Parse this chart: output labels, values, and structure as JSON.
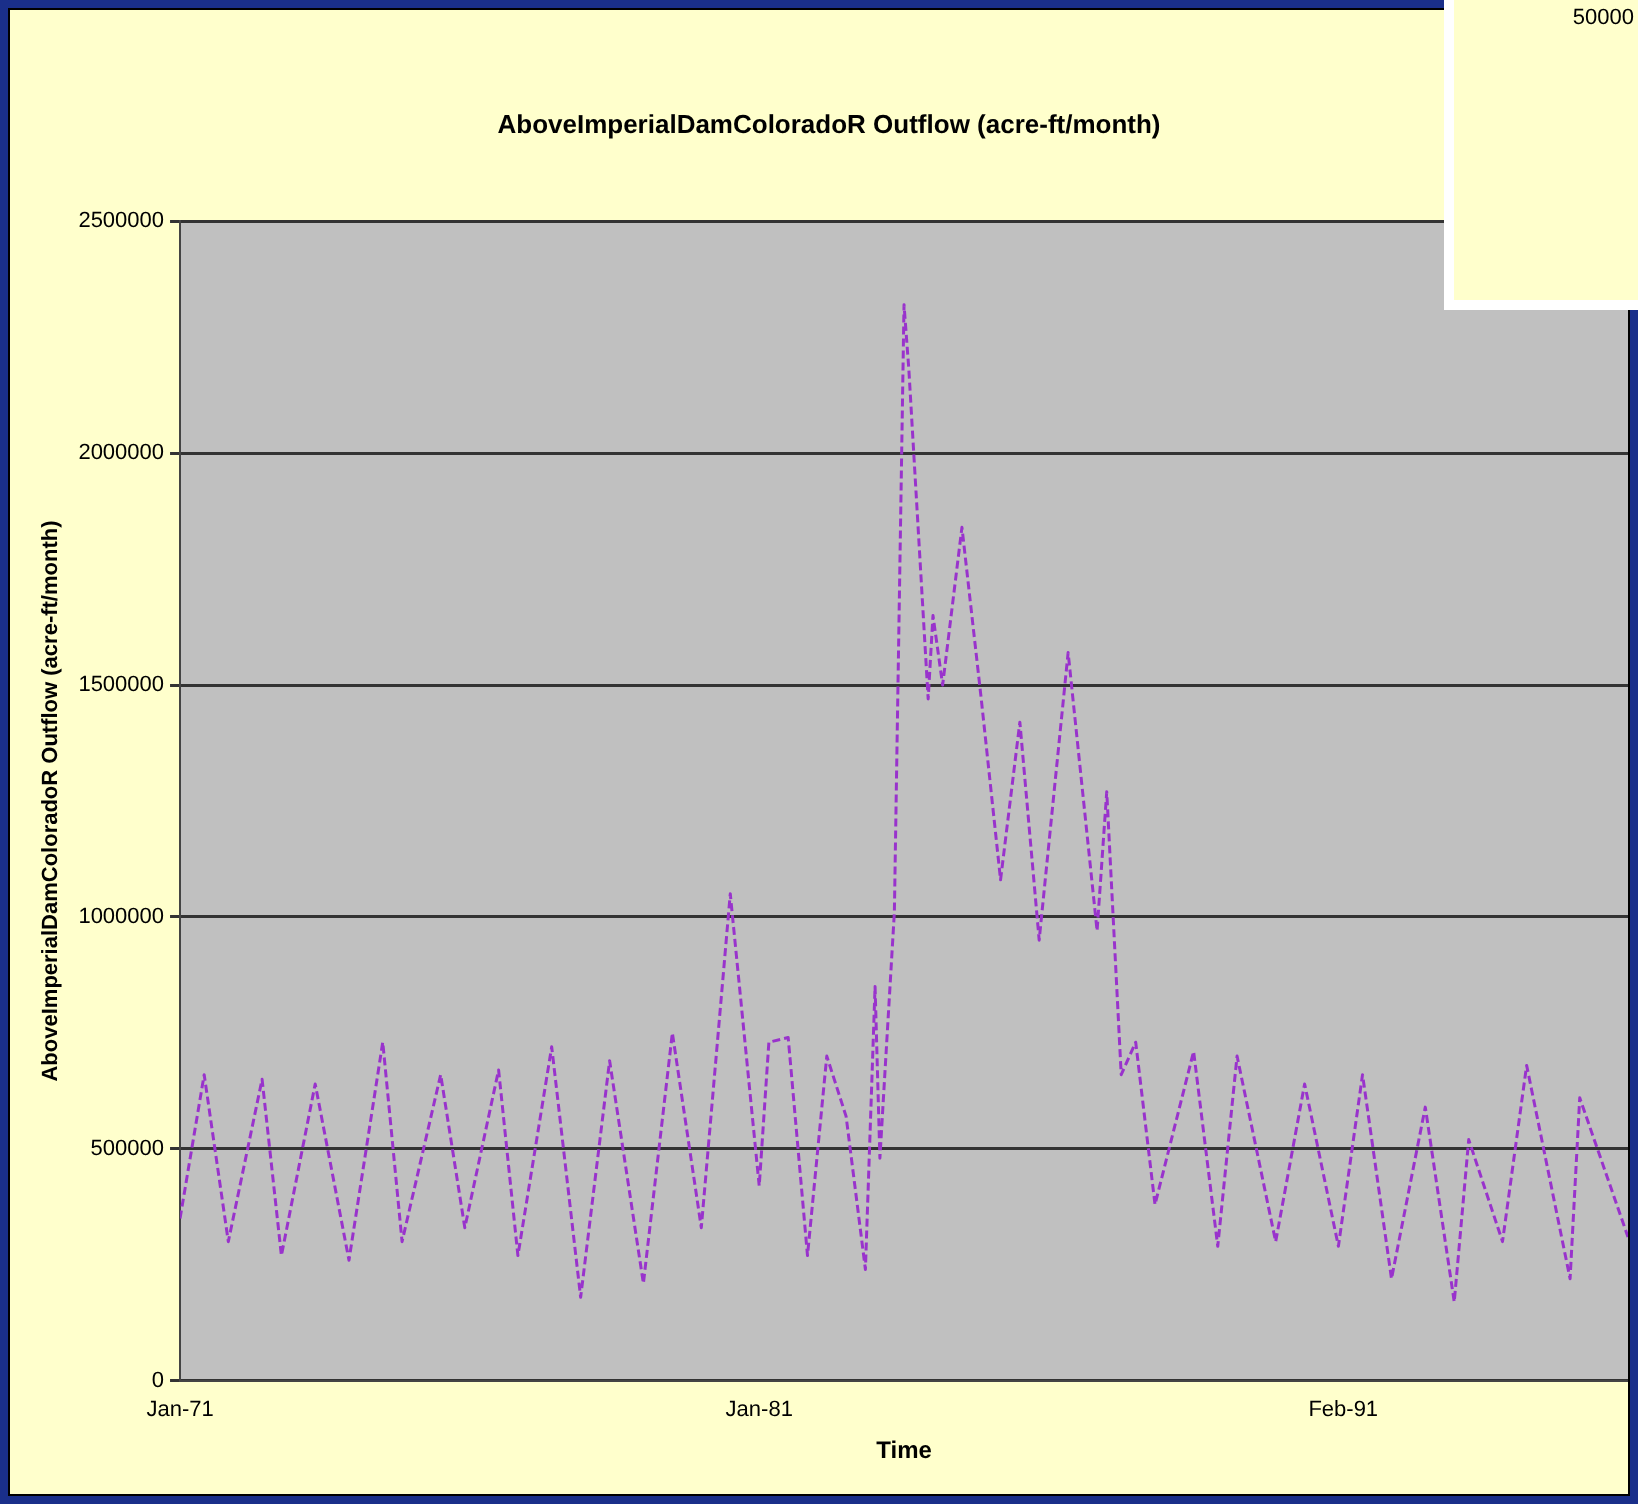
{
  "chart_data": {
    "type": "line",
    "title": "AboveImperialDamColoradoR Outflow (acre-ft/month)",
    "xlabel": "Time",
    "ylabel": "AboveImperialDamColoradoR Outflow (acre-ft/month)",
    "annotations": [
      "50000"
    ],
    "x": [
      "1971-01",
      "1971-06",
      "1971-11",
      "1972-06",
      "1972-10",
      "1973-05",
      "1973-12",
      "1974-07",
      "1974-11",
      "1975-07",
      "1975-12",
      "1976-07",
      "1976-11",
      "1977-06",
      "1977-12",
      "1978-06",
      "1979-01",
      "1979-07",
      "1980-01",
      "1980-07",
      "1981-01",
      "1981-03",
      "1981-07",
      "1981-11",
      "1982-03",
      "1982-07",
      "1982-11",
      "1983-01",
      "1983-02",
      "1983-05",
      "1983-07",
      "1983-08",
      "1983-12",
      "1984-01",
      "1984-03",
      "1984-07",
      "1984-11",
      "1985-03",
      "1985-07",
      "1985-11",
      "1986-02",
      "1986-05",
      "1986-11",
      "1987-01",
      "1987-04",
      "1987-07",
      "1987-11",
      "1988-07",
      "1988-12",
      "1989-04",
      "1989-12",
      "1990-06",
      "1991-01",
      "1991-06",
      "1991-12",
      "1992-07",
      "1993-01",
      "1993-04",
      "1993-11",
      "1994-04",
      "1995-01",
      "1995-03",
      "1996-01"
    ],
    "series": [
      {
        "color": "#9933cc",
        "values": [
          350000,
          660000,
          300000,
          650000,
          270000,
          640000,
          260000,
          730000,
          300000,
          660000,
          330000,
          670000,
          270000,
          720000,
          180000,
          690000,
          210000,
          750000,
          330000,
          1050000,
          420000,
          730000,
          740000,
          270000,
          700000,
          570000,
          240000,
          850000,
          480000,
          1010000,
          2320000,
          2180000,
          1470000,
          1650000,
          1500000,
          1840000,
          1470000,
          1080000,
          1420000,
          950000,
          1260000,
          1570000,
          970000,
          1270000,
          660000,
          730000,
          380000,
          710000,
          290000,
          700000,
          300000,
          640000,
          290000,
          660000,
          220000,
          590000,
          170000,
          520000,
          300000,
          680000,
          220000,
          610000,
          310000
        ]
      }
    ],
    "xlim": [
      "1971-01",
      "1996-01"
    ],
    "xticks": [
      {
        "value": "1971-01",
        "label": "Jan-71"
      },
      {
        "value": "1981-01",
        "label": "Jan-81"
      },
      {
        "value": "1991-02",
        "label": "Feb-91"
      }
    ],
    "ylim": [
      0,
      2500000
    ],
    "yticks": [
      0,
      500000,
      1000000,
      1500000,
      2000000,
      2500000
    ],
    "grid": "y",
    "legend": false,
    "marker": "none",
    "line_style": "dashed"
  }
}
